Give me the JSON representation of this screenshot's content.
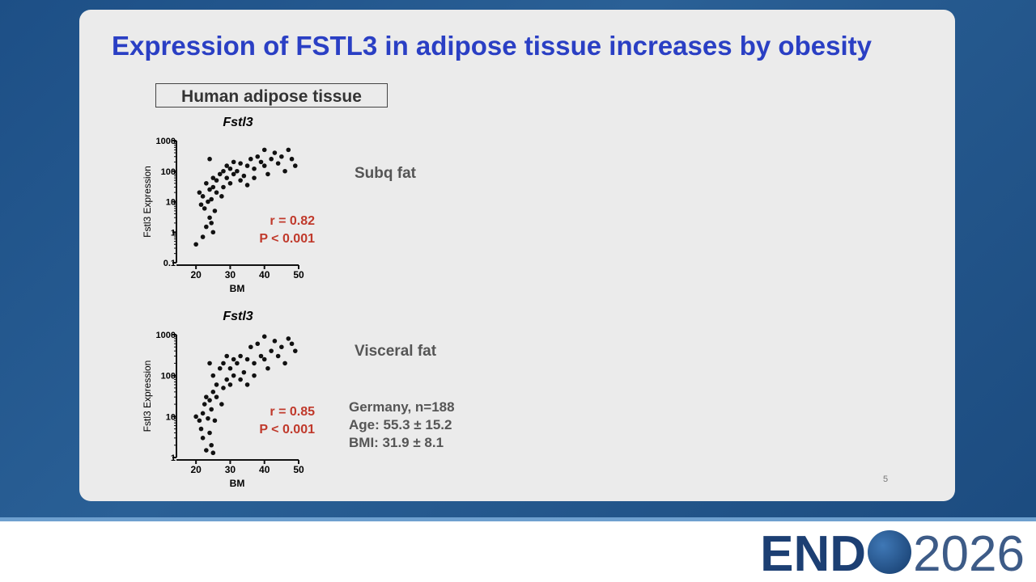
{
  "slide": {
    "title": "Expression of FSTL3 in adipose tissue increases by obesity",
    "box_label": "Human adipose tissue",
    "labels": [
      "Subq fat",
      "Visceral fat"
    ],
    "info": [
      "Germany, n=188",
      "Age:  55.3 ± 15.2",
      "BMI:  31.9 ± 8.1"
    ],
    "page_number": "5"
  },
  "footer": {
    "logo_left": "END",
    "logo_right": "2026"
  },
  "chart_data": [
    {
      "type": "scatter",
      "title": "Fstl3",
      "xlabel": "BM",
      "ylabel": "Fstl3 Expression",
      "color": "#111111",
      "log_y": true,
      "annotations": [
        "r = 0.82",
        "P < 0.001"
      ],
      "annotation_color": "#c0392b",
      "xlim": [
        15,
        50
      ],
      "ylim": [
        0.1,
        1000
      ],
      "xticks": [
        20,
        30,
        40,
        50
      ],
      "yticks": [
        0.1,
        1,
        10,
        100,
        1000
      ],
      "x": [
        20,
        21,
        21.5,
        22,
        22,
        22.5,
        23,
        23,
        23.5,
        24,
        24,
        24,
        24.5,
        24.5,
        25,
        25,
        25,
        25.5,
        26,
        26,
        27,
        27.5,
        28,
        28,
        29,
        29,
        30,
        30,
        31,
        31,
        32,
        33,
        33,
        34,
        35,
        35,
        36,
        37,
        37,
        38,
        39,
        40,
        40,
        41,
        42,
        43,
        44,
        45,
        46,
        47,
        48,
        49
      ],
      "y": [
        0.4,
        20,
        8,
        0.7,
        15,
        6,
        1.5,
        40,
        10,
        3,
        25,
        250,
        2,
        12,
        1,
        30,
        60,
        5,
        50,
        20,
        80,
        15,
        30,
        100,
        60,
        150,
        40,
        120,
        200,
        80,
        100,
        50,
        180,
        70,
        150,
        35,
        250,
        120,
        60,
        300,
        200,
        500,
        150,
        80,
        250,
        400,
        180,
        300,
        100,
        500,
        250,
        150
      ]
    },
    {
      "type": "scatter",
      "title": "Fstl3",
      "xlabel": "BM",
      "ylabel": "Fstl3 Expression",
      "color": "#111111",
      "log_y": true,
      "annotations": [
        "r = 0.85",
        "P < 0.001"
      ],
      "annotation_color": "#c0392b",
      "xlim": [
        15,
        50
      ],
      "ylim": [
        1,
        1000
      ],
      "xticks": [
        20,
        30,
        40,
        50
      ],
      "yticks": [
        1,
        10,
        100,
        1000
      ],
      "x": [
        20,
        21,
        21.5,
        22,
        22,
        22.5,
        23,
        23,
        23.5,
        24,
        24,
        24,
        24.5,
        24.5,
        25,
        25,
        25,
        25.5,
        26,
        26,
        27,
        27.5,
        28,
        28,
        29,
        29,
        30,
        30,
        31,
        31,
        32,
        33,
        33,
        34,
        35,
        35,
        36,
        37,
        37,
        38,
        39,
        40,
        40,
        41,
        42,
        43,
        44,
        45,
        46,
        47,
        48,
        49
      ],
      "y": [
        10,
        8,
        5,
        3,
        12,
        20,
        1.5,
        30,
        9,
        4,
        25,
        200,
        2,
        15,
        1.3,
        40,
        100,
        8,
        60,
        30,
        150,
        20,
        50,
        200,
        80,
        300,
        60,
        150,
        250,
        100,
        200,
        80,
        300,
        120,
        250,
        60,
        500,
        200,
        100,
        600,
        300,
        900,
        250,
        150,
        400,
        700,
        300,
        500,
        200,
        800,
        600,
        400
      ]
    }
  ]
}
